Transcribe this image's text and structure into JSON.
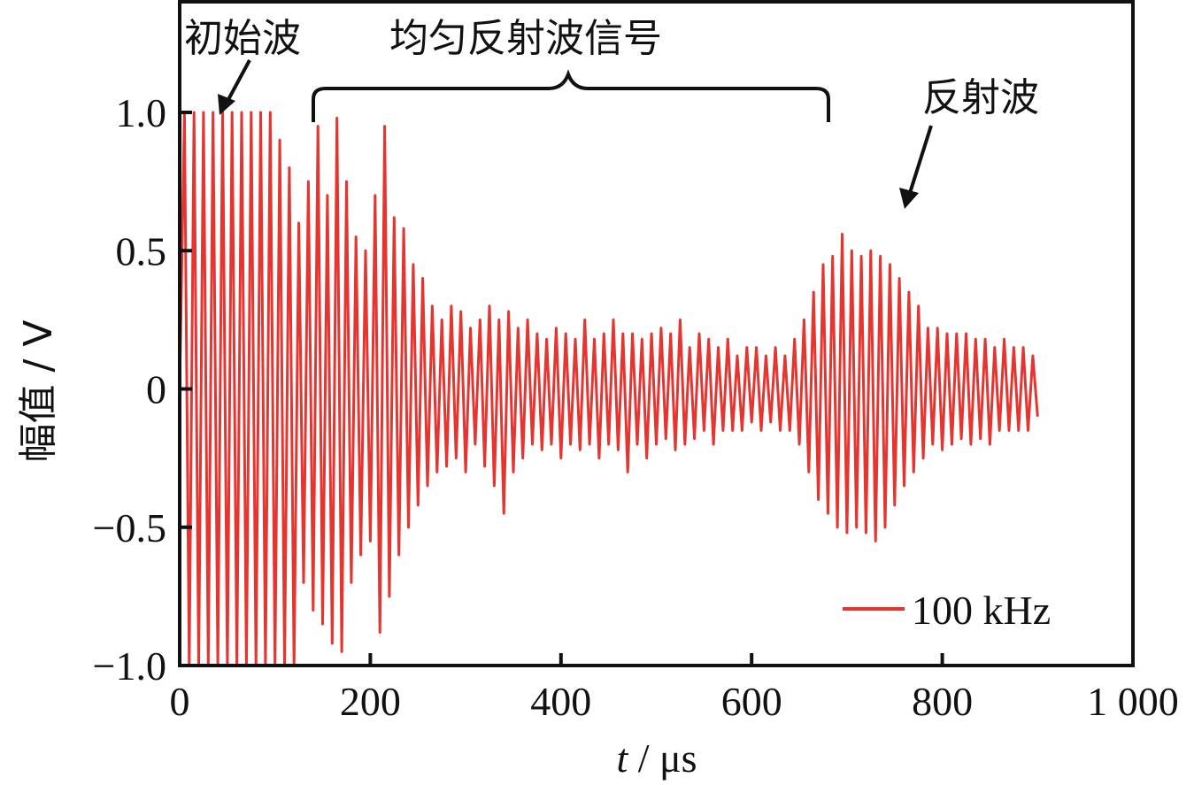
{
  "chart_data": {
    "type": "line",
    "title": "",
    "xlabel_var": "t",
    "xlabel_unit": " / μs",
    "ylabel": "幅值 / V",
    "xlim": [
      0,
      1000
    ],
    "ylim": [
      -1.0,
      1.4
    ],
    "xticks": [
      0,
      200,
      400,
      600,
      800,
      1000
    ],
    "xtick_labels": [
      "0",
      "200",
      "400",
      "600",
      "800",
      "1 000"
    ],
    "yticks": [
      -1.0,
      -0.5,
      0,
      0.5,
      1.0
    ],
    "ytick_labels": [
      "−1.0",
      "−0.5",
      "0",
      "0.5",
      "1.0"
    ],
    "grid": false,
    "legend_position": "bottom-right",
    "series": [
      {
        "name": "100 kHz",
        "color": "#e53530",
        "x": [
          0,
          5,
          10,
          15,
          20,
          25,
          30,
          35,
          40,
          45,
          50,
          55,
          60,
          65,
          70,
          75,
          80,
          85,
          90,
          95,
          100,
          105,
          110,
          115,
          120,
          125,
          130,
          135,
          140,
          145,
          150,
          155,
          160,
          165,
          170,
          175,
          180,
          185,
          190,
          195,
          200,
          205,
          210,
          215,
          220,
          225,
          230,
          235,
          240,
          245,
          250,
          255,
          260,
          265,
          270,
          275,
          280,
          285,
          290,
          295,
          300,
          305,
          310,
          315,
          320,
          325,
          330,
          335,
          340,
          345,
          350,
          355,
          360,
          365,
          370,
          375,
          380,
          385,
          390,
          395,
          400,
          405,
          410,
          415,
          420,
          425,
          430,
          435,
          440,
          445,
          450,
          455,
          460,
          465,
          470,
          475,
          480,
          485,
          490,
          495,
          500,
          505,
          510,
          515,
          520,
          525,
          530,
          535,
          540,
          545,
          550,
          555,
          560,
          565,
          570,
          575,
          580,
          585,
          590,
          595,
          600,
          605,
          610,
          615,
          620,
          625,
          630,
          635,
          640,
          645,
          650,
          655,
          660,
          665,
          670,
          675,
          680,
          685,
          690,
          695,
          700,
          705,
          710,
          715,
          720,
          725,
          730,
          735,
          740,
          745,
          750,
          755,
          760,
          765,
          770,
          775,
          780,
          785,
          790,
          795,
          800,
          805,
          810,
          815,
          820,
          825,
          830,
          835,
          840,
          845,
          850,
          855,
          860,
          865,
          870,
          875,
          880,
          885,
          890,
          895,
          900
        ],
        "y": [
          0,
          1,
          -1,
          1,
          -1,
          1,
          -1,
          1,
          -1,
          1,
          -1,
          1,
          -1,
          1,
          -1,
          1,
          -1,
          1,
          -1,
          1,
          -1,
          0.9,
          -1,
          0.8,
          -1,
          0.6,
          -0.7,
          0.75,
          -0.8,
          0.95,
          -0.85,
          0.7,
          -0.92,
          0.98,
          -0.95,
          0.75,
          -0.7,
          0.55,
          -0.6,
          0.5,
          -0.55,
          0.7,
          -0.88,
          0.95,
          -0.75,
          0.62,
          -0.6,
          0.58,
          -0.5,
          0.45,
          -0.42,
          0.4,
          -0.35,
          0.3,
          -0.3,
          0.25,
          -0.28,
          0.3,
          -0.25,
          0.28,
          -0.3,
          0.22,
          -0.2,
          0.25,
          -0.28,
          0.3,
          -0.35,
          0.25,
          -0.45,
          0.28,
          -0.3,
          0.22,
          -0.25,
          0.25,
          -0.2,
          0.2,
          -0.22,
          0.18,
          -0.2,
          0.22,
          -0.25,
          0.2,
          -0.2,
          0.18,
          -0.22,
          0.25,
          -0.2,
          0.18,
          -0.25,
          0.2,
          -0.2,
          0.25,
          -0.22,
          0.2,
          -0.3,
          0.2,
          -0.2,
          0.18,
          -0.25,
          0.2,
          -0.2,
          0.22,
          -0.18,
          0.2,
          -0.22,
          0.25,
          -0.2,
          0.15,
          -0.18,
          0.2,
          -0.15,
          0.18,
          -0.2,
          0.15,
          -0.15,
          0.18,
          -0.15,
          0.12,
          -0.15,
          0.15,
          -0.12,
          0.15,
          -0.15,
          0.12,
          -0.12,
          0.15,
          -0.15,
          0.12,
          -0.15,
          0.18,
          -0.2,
          0.25,
          -0.3,
          0.35,
          -0.4,
          0.45,
          -0.45,
          0.48,
          -0.5,
          0.56,
          -0.52,
          0.5,
          -0.5,
          0.48,
          -0.52,
          0.5,
          -0.55,
          0.48,
          -0.5,
          0.45,
          -0.42,
          0.4,
          -0.35,
          0.35,
          -0.3,
          0.3,
          -0.25,
          0.22,
          -0.2,
          0.22,
          -0.22,
          0.2,
          -0.2,
          0.2,
          -0.18,
          0.2,
          -0.2,
          0.18,
          -0.18,
          0.18,
          -0.2,
          0.15,
          -0.15,
          0.18,
          -0.15,
          0.15,
          -0.15,
          0.15,
          -0.15,
          0.12,
          -0.1
        ]
      }
    ],
    "annotations": {
      "initial_wave": "初始波",
      "uniform_reflection": "均匀反射波信号",
      "reflection_wave": "反射波"
    }
  }
}
